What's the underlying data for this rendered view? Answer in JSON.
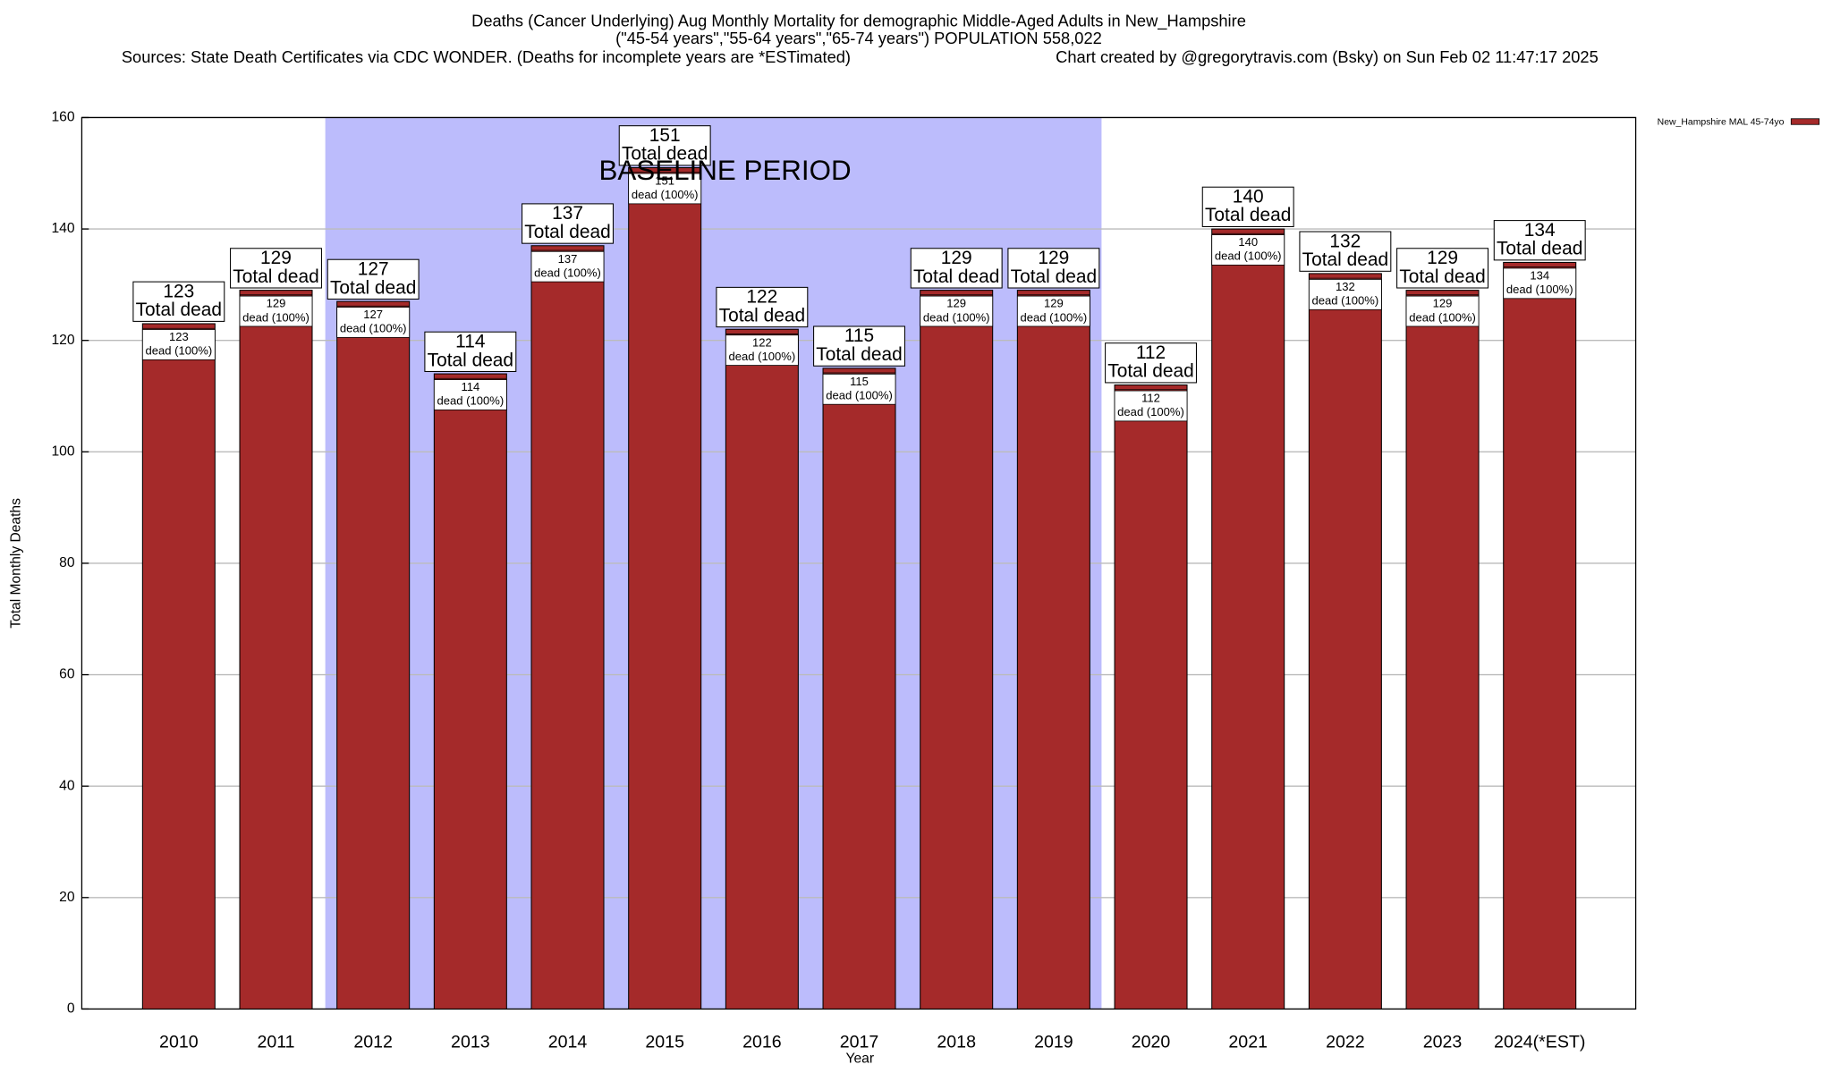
{
  "chart_data": {
    "type": "bar",
    "title": "Deaths (Cancer Underlying) Aug Monthly Mortality for demographic Middle-Aged Adults in New_Hampshire",
    "subtitle": "(\"45-54 years\",\"55-64 years\",\"65-74 years\") POPULATION 558,022",
    "source": "Sources: State Death Certificates via CDC WONDER. (Deaths for incomplete years are *ESTimated)",
    "credit": "Chart created by @gregorytravis.com (Bsky) on Sun Feb 02 11:47:17 2025",
    "x_label": "Year",
    "y_label": "Total Monthly Deaths",
    "categories": [
      "2010",
      "2011",
      "2012",
      "2013",
      "2014",
      "2015",
      "2016",
      "2017",
      "2018",
      "2019",
      "2020",
      "2021",
      "2022",
      "2023",
      "2024(*EST)"
    ],
    "series": [
      {
        "name": "New_Hampshire MAL 45-74yo",
        "color": "#a52a2a",
        "values": [
          123,
          129,
          127,
          114,
          137,
          151,
          122,
          115,
          129,
          129,
          112,
          140,
          132,
          129,
          134
        ]
      }
    ],
    "total_label_text": "Total dead",
    "share_label_text": "dead (100%)",
    "baseline": {
      "label": "BASELINE PERIOD",
      "start": "2012",
      "end": "2019",
      "color": "#bcbcfc"
    },
    "ylim": [
      0,
      160
    ],
    "yticks": [
      0,
      20,
      40,
      60,
      80,
      100,
      120,
      140,
      160
    ],
    "grid": true,
    "legend": "top-right"
  }
}
